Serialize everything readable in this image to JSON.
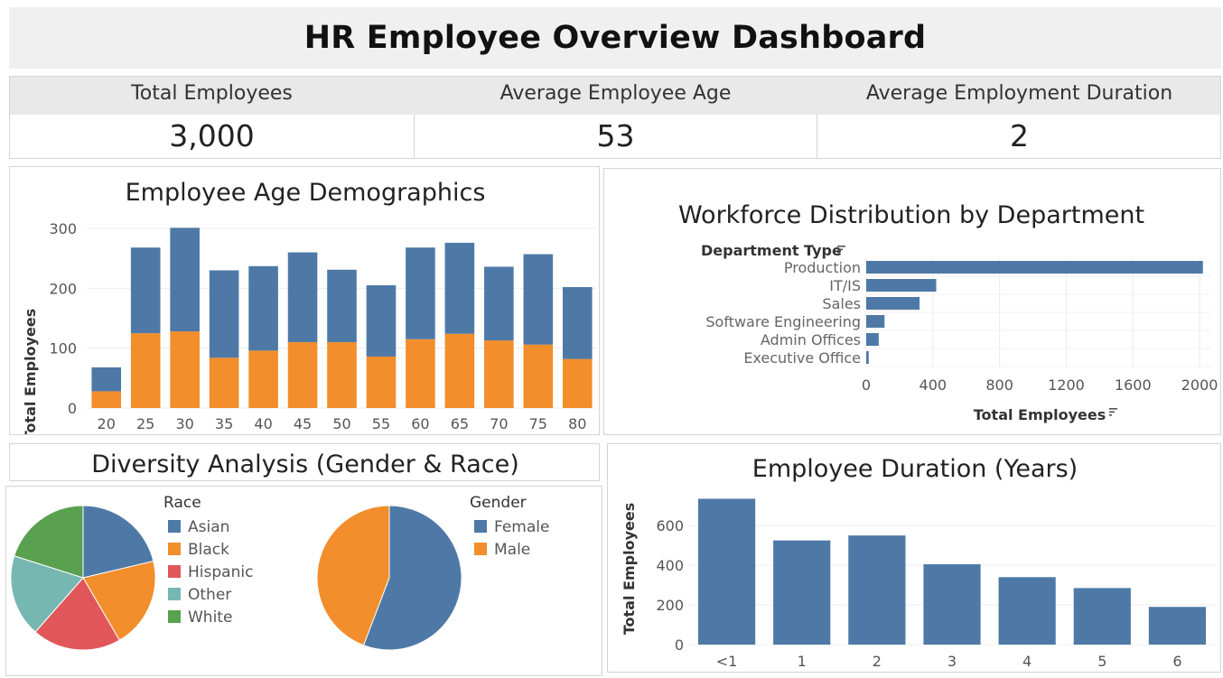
{
  "header": {
    "title": "HR Employee Overview Dashboard"
  },
  "kpis": [
    {
      "label": "Total Employees",
      "value": "3,000"
    },
    {
      "label": "Average Employee Age",
      "value": "53"
    },
    {
      "label": "Average Employment Duration",
      "value": "2"
    }
  ],
  "colors": {
    "blue": "#4e79a7",
    "orange": "#f28e2b",
    "red": "#e15759",
    "teal": "#76b7b2",
    "green": "#59a14f"
  },
  "chart_data": [
    {
      "id": "age",
      "type": "bar",
      "title": "Employee Age Demographics",
      "ylabel": "Total Employees",
      "xlabel": "",
      "stacked": true,
      "categories": [
        "20",
        "25",
        "30",
        "35",
        "40",
        "45",
        "50",
        "55",
        "60",
        "65",
        "70",
        "75",
        "80"
      ],
      "series": [
        {
          "color": "#f28e2b",
          "values": [
            28,
            125,
            128,
            84,
            96,
            110,
            110,
            86,
            115,
            124,
            113,
            106,
            82
          ]
        },
        {
          "color": "#4e79a7",
          "values": [
            40,
            143,
            173,
            146,
            141,
            150,
            121,
            119,
            153,
            152,
            123,
            151,
            120
          ]
        }
      ],
      "yticks": [
        0,
        100,
        200,
        300
      ],
      "ylim": [
        0,
        300
      ],
      "grid": true
    },
    {
      "id": "dept",
      "type": "bar",
      "orientation": "horizontal",
      "title": "Workforce Distribution by Department",
      "field_label": "Department Type",
      "xlabel": "Total Employees",
      "categories": [
        "Production",
        "IT/IS",
        "Sales",
        "Software Engineering",
        "Admin Offices",
        "Executive Office"
      ],
      "values": [
        2020,
        420,
        320,
        110,
        75,
        15
      ],
      "xticks": [
        0,
        400,
        800,
        1200,
        1600,
        2000
      ],
      "xlim": [
        0,
        2070
      ],
      "grid": true
    },
    {
      "id": "race",
      "type": "pie",
      "title": "Diversity Analysis (Gender & Race)",
      "legend_title": "Race",
      "labels": [
        "Asian",
        "Black",
        "Hispanic",
        "Other",
        "White"
      ],
      "values": [
        21.3,
        20.3,
        19.9,
        18.4,
        20.1
      ],
      "colors": [
        "#4e79a7",
        "#f28e2b",
        "#e15759",
        "#76b7b2",
        "#59a14f"
      ]
    },
    {
      "id": "gender",
      "type": "pie",
      "legend_title": "Gender",
      "labels": [
        "Female",
        "Male"
      ],
      "values": [
        55.8,
        44.2
      ],
      "colors": [
        "#4e79a7",
        "#f28e2b"
      ]
    },
    {
      "id": "duration",
      "type": "bar",
      "title": "Employee Duration (Years)",
      "ylabel": "Total Employees",
      "categories": [
        "<1",
        "1",
        "2",
        "3",
        "4",
        "5",
        "6"
      ],
      "values": [
        735,
        525,
        550,
        405,
        340,
        285,
        190
      ],
      "yticks": [
        0,
        200,
        400,
        600
      ],
      "ylim": [
        0,
        760
      ],
      "color": "#4e79a7",
      "grid": true
    }
  ]
}
